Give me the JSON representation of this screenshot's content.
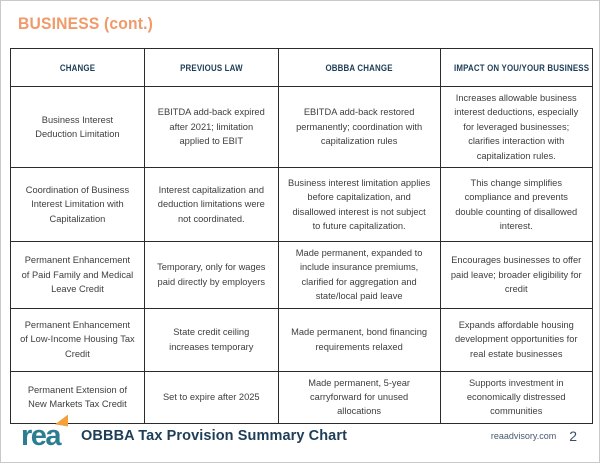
{
  "page": {
    "section_title": "BUSINESS (cont.)"
  },
  "colors": {
    "accent_orange": "#f09a6a",
    "navy": "#1e3d57",
    "logo_teal": "#2b7d8f",
    "logo_flag_orange": "#f2a13c",
    "body_text": "#3e3e3e",
    "table_border": "#2b2b2b"
  },
  "table": {
    "headers": [
      "CHANGE",
      "PREVIOUS LAW",
      "OBBBA CHANGE",
      "IMPACT ON YOU/YOUR BUSINESS"
    ],
    "rows": [
      {
        "change": "Business Interest Deduction Limitation",
        "previous_law": "EBITDA add-back expired after 2021; limitation applied to EBIT",
        "obbba_change": "EBITDA add-back restored permanently; coordination with capitalization rules",
        "impact": "Increases allowable business interest deductions, especially for leveraged businesses; clarifies interaction with capitalization rules."
      },
      {
        "change": "Coordination of Business Interest Limitation with Capitalization",
        "previous_law": "Interest capitalization and deduction limitations were not coordinated.",
        "obbba_change": "Business interest limitation applies before capitalization, and disallowed interest is not subject to future capitalization.",
        "impact": "This change simplifies compliance and prevents double counting of disallowed interest."
      },
      {
        "change": "Permanent Enhancement of Paid Family and Medical Leave Credit",
        "previous_law": "Temporary, only for wages paid directly by employers",
        "obbba_change": "Made permanent, expanded to include insurance premiums, clarified for aggregation and state/local paid leave",
        "impact": "Encourages businesses to offer paid leave; broader eligibility for credit"
      },
      {
        "change": "Permanent Enhancement of Low-Income Housing Tax Credit",
        "previous_law": "State credit ceiling increases temporary",
        "obbba_change": "Made permanent, bond financing requirements relaxed",
        "impact": "Expands affordable housing development opportunities for real estate businesses"
      },
      {
        "change": "Permanent Extension of New Markets Tax Credit",
        "previous_law": "Set to expire after 2025",
        "obbba_change": "Made permanent, 5-year carryforward for unused allocations",
        "impact": "Supports investment in economically distressed communities"
      }
    ]
  },
  "footer": {
    "logo_text": "rea",
    "chart_title": "OBBBA Tax Provision Summary Chart",
    "website": "reaadvisory.com",
    "page_number": "2"
  }
}
